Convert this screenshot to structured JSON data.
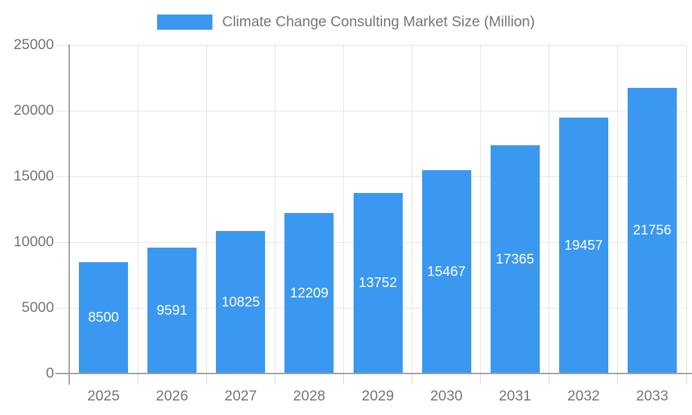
{
  "legend": {
    "label": "Climate Change Consulting Market Size (Million)",
    "swatch_color": "#3b98f0"
  },
  "chart_data": {
    "type": "bar",
    "title": "Climate Change Consulting Market Size (Million)",
    "categories": [
      "2025",
      "2026",
      "2027",
      "2028",
      "2029",
      "2030",
      "2031",
      "2032",
      "2033"
    ],
    "values": [
      8500,
      9591,
      10825,
      12209,
      13752,
      15467,
      17365,
      19457,
      21756
    ],
    "value_labels": [
      "8500",
      "9591",
      "10825",
      "12209",
      "13752",
      "15467",
      "17365",
      "19457",
      "21756"
    ],
    "xlabel": "",
    "ylabel": "",
    "ylim": [
      0,
      25000
    ],
    "yticks": [
      0,
      5000,
      10000,
      15000,
      20000,
      25000
    ],
    "ytick_labels": [
      "0",
      "5000",
      "10000",
      "15000",
      "20000",
      "25000"
    ],
    "grid": true,
    "legend_position": "top",
    "colors": {
      "bar": "#3b98f0",
      "value_label": "#ffffff",
      "axis_text": "#757575",
      "gridline": "#e3e3e3",
      "axis_line": "#9e9e9e"
    }
  }
}
